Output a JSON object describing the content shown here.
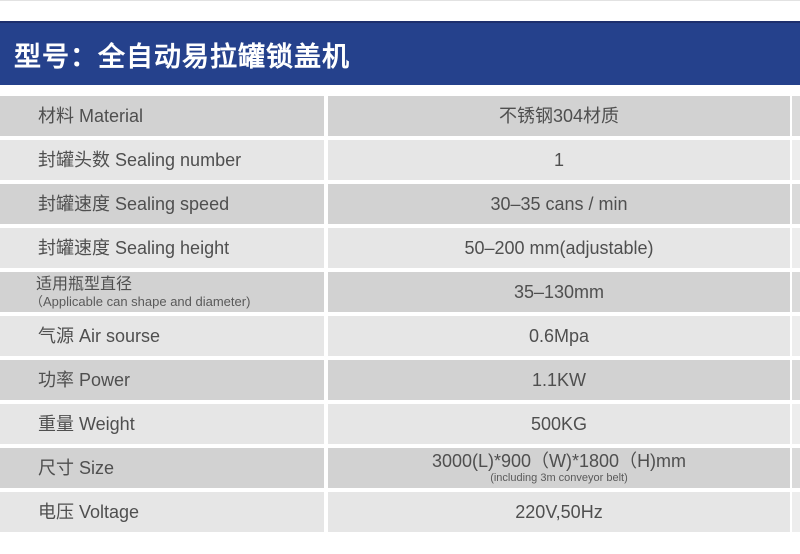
{
  "banner": {
    "title": "型号：全自动易拉罐锁盖机",
    "bg_color": "#25418c",
    "border_color": "#1d2f6d",
    "text_color": "#ffffff"
  },
  "table": {
    "row_dark_color": "#d2d2d2",
    "row_light_color": "#e6e6e6",
    "text_color": "#4f4f4f",
    "rows": [
      {
        "label": "材料 Material",
        "value": "不锈钢304材质"
      },
      {
        "label": "封罐头数 Sealing number",
        "value": "1"
      },
      {
        "label": "封罐速度 Sealing speed",
        "value": "30–35 cans / min"
      },
      {
        "label": "封罐速度 Sealing height",
        "value": "50–200 mm(adjustable)"
      },
      {
        "label": "适用瓶型直径",
        "label_sub": "（Applicable can shape and diameter)",
        "value": "35–130mm"
      },
      {
        "label": "气源 Air sourse",
        "value": "0.6Mpa"
      },
      {
        "label": "功率 Power",
        "value": "1.1KW"
      },
      {
        "label": "重量 Weight",
        "value": "500KG"
      },
      {
        "label": "尺寸 Size",
        "value": "3000(L)*900（W)*1800（H)mm",
        "value_sub": "(including 3m conveyor belt)"
      },
      {
        "label": "电压 Voltage",
        "value": "220V,50Hz"
      }
    ]
  }
}
